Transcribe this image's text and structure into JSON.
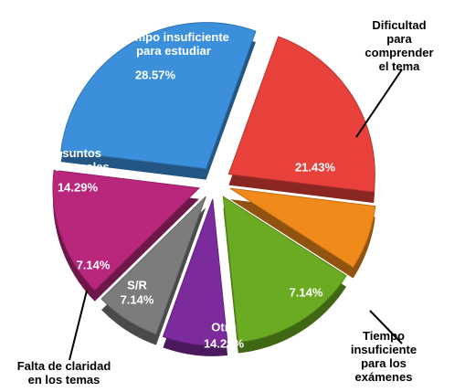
{
  "chart_data": {
    "type": "pie",
    "categories": [
      "Tiempo insuficiente\npara estudiar",
      "Dificultad para\ncomprender el tema",
      "Tiempo insuficiente\npara los exámenes",
      "Otro",
      "S/R",
      "Falta de claridad\nen los temas",
      "Asuntos\nPersonales"
    ],
    "values": [
      28.57,
      21.43,
      7.14,
      14.29,
      7.14,
      7.14,
      14.29
    ],
    "value_labels": [
      "28.57%",
      "21.43%",
      "7.14%",
      "14.29%",
      "7.14%",
      "7.14%",
      "14.29%"
    ],
    "colors": [
      "#3b8fdb",
      "#e8413b",
      "#f08b1b",
      "#6aab22",
      "#7b2b9b",
      "#7c7c7c",
      "#b8277b"
    ]
  }
}
